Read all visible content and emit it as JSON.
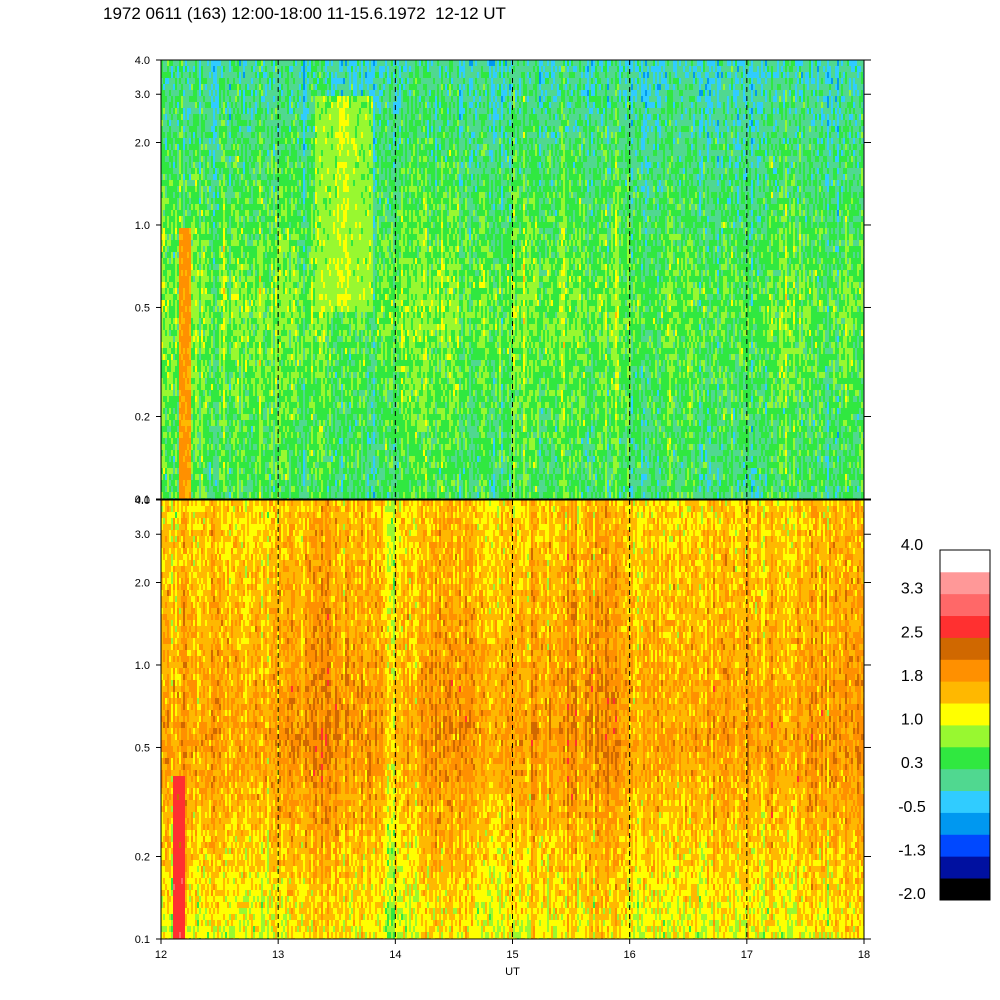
{
  "title": "1972 0611 (163) 12:00-18:00 11-15.6.1972  12-12 UT",
  "chart_data": [
    {
      "type": "heatmap",
      "panel": "top",
      "x_range": [
        12,
        18
      ],
      "y_range": [
        0.1,
        4.0
      ],
      "y_scale": "log",
      "y_ticks": [
        0.1,
        0.2,
        0.5,
        1.0,
        2.0,
        3.0,
        4.0
      ],
      "y_tick_labels": [
        "0.1",
        "0.2",
        "0.5",
        "1.0",
        "2.0",
        "3.0",
        "4.0"
      ],
      "x_ticks": [
        12,
        13,
        14,
        15,
        16,
        17,
        18
      ],
      "dominant_values": {
        "low_freq": 0.3,
        "mid_freq": 0.65,
        "high_freq": 0.0
      },
      "features": [
        {
          "x": 12.2,
          "y_from": 0.1,
          "y_to": 1.0,
          "value": 1.8
        },
        {
          "x": 13.55,
          "y_from": 0.5,
          "y_to": 3.0,
          "value": 1.0
        }
      ]
    },
    {
      "type": "heatmap",
      "panel": "bottom",
      "x_range": [
        12,
        18
      ],
      "y_range": [
        0.1,
        4.0
      ],
      "y_scale": "log",
      "y_ticks": [
        0.1,
        0.2,
        0.5,
        1.0,
        2.0,
        3.0,
        4.0
      ],
      "y_tick_labels": [
        "0.1",
        "0.2",
        "0.5",
        "1.0",
        "2.0",
        "3.0",
        "4.0"
      ],
      "x_ticks": [
        12,
        13,
        14,
        15,
        16,
        17,
        18
      ],
      "x_tick_labels": [
        "12",
        "13",
        "14",
        "15",
        "16",
        "17",
        "18"
      ],
      "xlabel": "UT",
      "dominant_values": {
        "low_freq": 1.2,
        "mid_freq": 1.9,
        "high_freq": 1.5
      },
      "features": [
        {
          "x": 12.15,
          "y_from": 0.1,
          "y_to": 0.4,
          "value": 2.7
        }
      ]
    }
  ],
  "colorbar": {
    "tick_labels": [
      "4.0",
      "3.3",
      "2.5",
      "1.8",
      "1.0",
      "0.3",
      "-0.5",
      "-1.3",
      "-2.0"
    ],
    "colors": [
      "#000000",
      "#0010a0",
      "#0048ff",
      "#0098f0",
      "#30ccff",
      "#50d890",
      "#30e840",
      "#98f830",
      "#ffff00",
      "#ffb800",
      "#ff9000",
      "#d06800",
      "#ff3030",
      "#ff6868",
      "#ff9898",
      "#ffffff"
    ]
  }
}
